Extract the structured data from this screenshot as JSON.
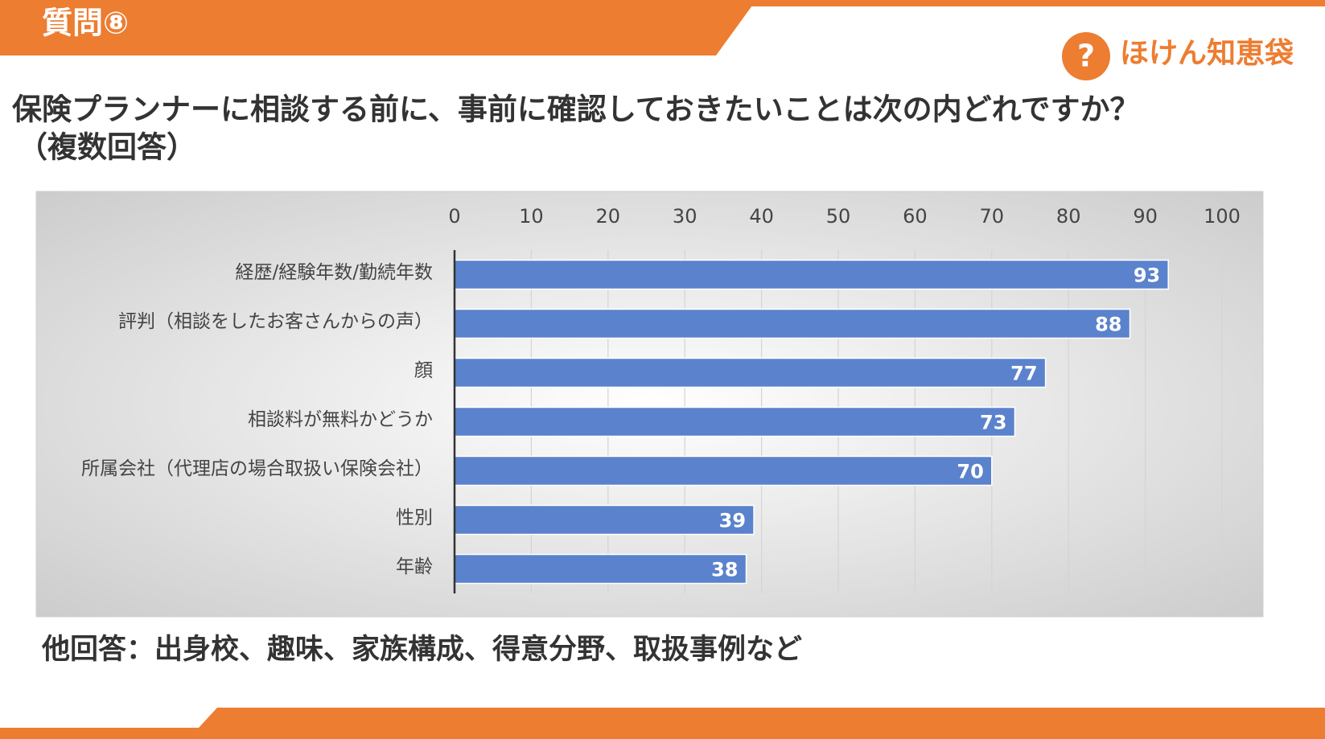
{
  "header": {
    "label": "質問⑧"
  },
  "logo": {
    "text": "ほけん知恵袋"
  },
  "chart_data": {
    "type": "bar",
    "orientation": "horizontal",
    "title": "保険プランナーに相談する前に、事前に確認しておきたいことは次の内どれですか？",
    "subtitle": "（複数回答）",
    "categories": [
      "経歴/経験年数/勤続年数",
      "評判（相談をしたお客さんからの声）",
      "顔",
      "相談料が無料かどうか",
      "所属会社（代理店の場合取扱い保険会社）",
      "性別",
      "年齢"
    ],
    "values": [
      93,
      88,
      77,
      73,
      70,
      39,
      38
    ],
    "color": "#5b82cc",
    "xlim": [
      0,
      100
    ],
    "xticks": [
      0,
      10,
      20,
      30,
      40,
      50,
      60,
      70,
      80,
      90,
      100
    ],
    "grid": true,
    "note": "他回答：出身校、趣味、家族構成、得意分野、取扱事例など"
  }
}
